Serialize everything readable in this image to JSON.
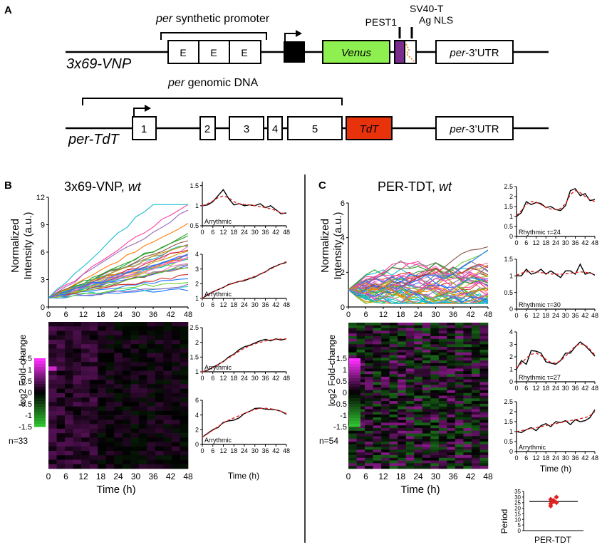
{
  "panels": {
    "A": "A",
    "B": "B",
    "C": "C"
  },
  "constructs": {
    "vnp": {
      "name": "3x69-VNP",
      "promoter_label_italic": "per",
      "promoter_label_rest": " synthetic promoter",
      "e_box": "E",
      "venus": "Venus",
      "pest": "PEST1",
      "sv40_line1": "SV40-T",
      "sv40_line2": "Ag NLS",
      "utr_italic": "per",
      "utr_rest": "-3’UTR"
    },
    "tdt": {
      "name": "per-TdT",
      "genomic_italic": "per",
      "genomic_rest": " genomic DNA",
      "exons": [
        "1",
        "2",
        "3",
        "4",
        "5"
      ],
      "tdt": "TdT",
      "utr_italic": "per",
      "utr_rest": "-3’UTR"
    }
  },
  "colors": {
    "venus": "#8ef050",
    "tdt": "#e8320c",
    "pest": "#7b2d8e",
    "magenta": "#ff30ff",
    "green": "#30c030",
    "fit": "#e02020"
  },
  "labels": {
    "b_title": "3x69-VNP, ",
    "b_title_italic": "wt",
    "c_title": "PER-TDT, ",
    "c_title_italic": "wt",
    "ylabel_line1": "Normalized",
    "ylabel_line2": "Intensity (a.u.)",
    "xlabel": "Time (h)",
    "heat_label": "log2 Fold-change",
    "b_n": "n=33",
    "c_n": "n=54",
    "period_ylabel": "Period",
    "period_xlabel": "PER-TDT"
  },
  "scale_ticks": [
    "1.5",
    "1",
    "0.5",
    "0",
    "-0.5",
    "-1",
    "-1.5"
  ],
  "chart_data": [
    {
      "id": "B_main",
      "type": "line",
      "x": [
        0,
        3,
        6,
        9,
        12,
        15,
        18,
        21,
        24,
        27,
        30,
        33,
        36,
        39,
        42,
        45,
        48
      ],
      "xticks": [
        "0",
        "6",
        "12",
        "18",
        "24",
        "30",
        "36",
        "42",
        "48"
      ],
      "yticks": [
        "0",
        "3",
        "6",
        "9",
        "12"
      ],
      "ylim": [
        0,
        12
      ],
      "xlim": [
        0,
        48
      ],
      "ylabel": "Normalized Intensity (a.u.)",
      "xlabel": "Time (h)"
    },
    {
      "id": "B_s1",
      "type": "line",
      "note": "Arrythmic",
      "x": [
        0,
        3,
        6,
        9,
        12,
        15,
        18,
        21,
        24,
        27,
        30,
        33,
        36,
        39,
        42,
        45,
        48
      ],
      "y": [
        1.0,
        1.02,
        1.1,
        1.25,
        1.4,
        1.18,
        1.02,
        1.05,
        1.0,
        1.02,
        1.0,
        1.05,
        0.95,
        1.0,
        0.9,
        0.8,
        0.82
      ],
      "fit": [
        1.0,
        1.05,
        1.12,
        1.2,
        1.24,
        1.2,
        1.1,
        1.05,
        1.03,
        1.02,
        1.0,
        0.98,
        0.95,
        0.92,
        0.88,
        0.82,
        0.8
      ],
      "yticks": [
        "0.5",
        "1",
        "1.5"
      ],
      "ylim": [
        0.5,
        1.6
      ]
    },
    {
      "id": "B_s2",
      "type": "line",
      "note": "Arrythmic",
      "x": [
        0,
        3,
        6,
        9,
        12,
        15,
        18,
        21,
        24,
        27,
        30,
        33,
        36,
        39,
        42,
        45,
        48
      ],
      "y": [
        1.0,
        1.25,
        1.45,
        1.6,
        1.75,
        1.95,
        2.05,
        2.15,
        2.2,
        2.35,
        2.45,
        2.65,
        2.8,
        3.05,
        3.2,
        3.35,
        3.45
      ],
      "fit": [
        1.0,
        1.22,
        1.42,
        1.6,
        1.76,
        1.92,
        2.05,
        2.15,
        2.25,
        2.38,
        2.5,
        2.65,
        2.82,
        3.0,
        3.18,
        3.35,
        3.5
      ],
      "yticks": [
        "1",
        "2",
        "3",
        "4"
      ],
      "ylim": [
        1,
        4
      ]
    },
    {
      "id": "B_s3",
      "type": "line",
      "note": "Arrythmic",
      "x": [
        0,
        3,
        6,
        9,
        12,
        15,
        18,
        21,
        24,
        27,
        30,
        33,
        36,
        39,
        42,
        45,
        48
      ],
      "y": [
        1.0,
        1.05,
        1.15,
        1.25,
        1.35,
        1.5,
        1.6,
        1.75,
        1.85,
        1.9,
        1.98,
        2.05,
        2.1,
        2.05,
        2.12,
        2.08,
        2.12
      ],
      "fit": [
        1.0,
        1.06,
        1.14,
        1.24,
        1.35,
        1.47,
        1.58,
        1.7,
        1.8,
        1.88,
        1.95,
        2.0,
        2.05,
        2.08,
        2.1,
        2.11,
        2.12
      ],
      "yticks": [
        "1",
        "1.5",
        "2",
        "2.5"
      ],
      "ylim": [
        1,
        2.5
      ]
    },
    {
      "id": "B_s4",
      "type": "line",
      "note": "Arrythmic",
      "x": [
        0,
        3,
        6,
        9,
        12,
        15,
        18,
        21,
        24,
        27,
        30,
        33,
        36,
        39,
        42,
        45,
        48
      ],
      "y": [
        1.0,
        1.5,
        2.0,
        2.3,
        3.0,
        3.2,
        3.3,
        3.6,
        4.2,
        4.5,
        4.9,
        4.95,
        4.8,
        4.75,
        4.7,
        4.5,
        4.1
      ],
      "fit": [
        1.0,
        1.45,
        1.95,
        2.45,
        2.9,
        3.3,
        3.6,
        3.9,
        4.2,
        4.5,
        4.75,
        4.9,
        4.92,
        4.85,
        4.7,
        4.5,
        4.2
      ],
      "yticks": [
        "0",
        "2",
        "4",
        "6"
      ],
      "ylim": [
        0,
        6
      ]
    },
    {
      "id": "C_main",
      "type": "line",
      "x": [
        0,
        3,
        6,
        9,
        12,
        15,
        18,
        21,
        24,
        27,
        30,
        33,
        36,
        39,
        42,
        45,
        48
      ],
      "xticks": [
        "0",
        "6",
        "12",
        "18",
        "24",
        "30",
        "36",
        "42",
        "48"
      ],
      "yticks": [
        "0",
        "2",
        "4",
        "6"
      ],
      "ylim": [
        0,
        6
      ],
      "xlim": [
        0,
        48
      ],
      "ylabel": "Normalized Intensity (a.u.)",
      "xlabel": "Time (h)"
    },
    {
      "id": "C_s1",
      "type": "line",
      "note": "Rhythmic τ=24",
      "x": [
        0,
        3,
        6,
        9,
        12,
        15,
        18,
        21,
        24,
        27,
        30,
        33,
        36,
        39,
        42,
        45,
        48
      ],
      "y": [
        1.0,
        1.2,
        1.75,
        1.6,
        1.7,
        1.65,
        1.45,
        1.5,
        1.35,
        1.3,
        1.55,
        2.3,
        2.4,
        2.05,
        2.15,
        1.8,
        1.85
      ],
      "fit": [
        1.05,
        1.3,
        1.6,
        1.75,
        1.72,
        1.6,
        1.45,
        1.38,
        1.35,
        1.4,
        1.65,
        2.1,
        2.3,
        2.2,
        2.0,
        1.85,
        1.75
      ],
      "yticks": [
        "0",
        "0.5",
        "1",
        "1.5",
        "2",
        "2.5"
      ],
      "ylim": [
        0,
        2.5
      ]
    },
    {
      "id": "C_s2",
      "type": "line",
      "note": "Rhythmic τ=30",
      "x": [
        0,
        3,
        6,
        9,
        12,
        15,
        18,
        21,
        24,
        27,
        30,
        33,
        36,
        39,
        42,
        45,
        48
      ],
      "y": [
        1.0,
        1.0,
        1.2,
        1.05,
        1.1,
        1.2,
        1.05,
        1.15,
        1.05,
        0.95,
        1.15,
        1.15,
        1.05,
        1.35,
        1.05,
        1.1,
        1.02
      ],
      "fit": [
        1.02,
        1.08,
        1.12,
        1.13,
        1.12,
        1.1,
        1.08,
        1.06,
        1.05,
        1.05,
        1.06,
        1.08,
        1.1,
        1.12,
        1.11,
        1.08,
        1.05
      ],
      "yticks": [
        "0",
        "0.5",
        "1",
        "1.5"
      ],
      "ylim": [
        0,
        1.5
      ]
    },
    {
      "id": "C_s3",
      "type": "line",
      "note": "Rhythmic τ=27",
      "x": [
        0,
        3,
        6,
        9,
        12,
        15,
        18,
        21,
        24,
        27,
        30,
        33,
        36,
        39,
        42,
        45,
        48
      ],
      "y": [
        1.0,
        1.7,
        1.4,
        2.5,
        2.45,
        2.3,
        1.6,
        1.5,
        1.4,
        1.7,
        2.3,
        2.3,
        2.8,
        3.2,
        2.9,
        2.5,
        2.05
      ],
      "fit": [
        1.1,
        1.5,
        1.9,
        2.2,
        2.3,
        2.1,
        1.8,
        1.55,
        1.5,
        1.7,
        2.05,
        2.45,
        2.85,
        3.05,
        2.95,
        2.6,
        2.15
      ],
      "yticks": [
        "0",
        "1",
        "2",
        "3",
        "4"
      ],
      "ylim": [
        0,
        4
      ]
    },
    {
      "id": "C_s4",
      "type": "line",
      "note": "Arrythmic",
      "x": [
        0,
        3,
        6,
        9,
        12,
        15,
        18,
        21,
        24,
        27,
        30,
        33,
        36,
        39,
        42,
        45,
        48
      ],
      "y": [
        1.0,
        0.95,
        1.1,
        1.2,
        1.05,
        1.3,
        1.4,
        1.25,
        1.5,
        1.45,
        1.55,
        1.35,
        1.6,
        1.5,
        1.55,
        1.7,
        2.1
      ],
      "fit": [
        1.0,
        1.05,
        1.1,
        1.15,
        1.2,
        1.25,
        1.3,
        1.35,
        1.4,
        1.45,
        1.5,
        1.55,
        1.6,
        1.65,
        1.7,
        1.8,
        2.0
      ],
      "yticks": [
        "0",
        "0.5",
        "1",
        "1.5",
        "2",
        "2.5"
      ],
      "ylim": [
        0,
        2.5
      ]
    },
    {
      "id": "C_period",
      "type": "scatter",
      "values": [
        24,
        27,
        30,
        28,
        26,
        25,
        22
      ],
      "mean": 26,
      "yticks": [
        "0",
        "5",
        "10",
        "15",
        "20",
        "25",
        "30",
        "35"
      ],
      "ylim": [
        0,
        35
      ]
    }
  ]
}
